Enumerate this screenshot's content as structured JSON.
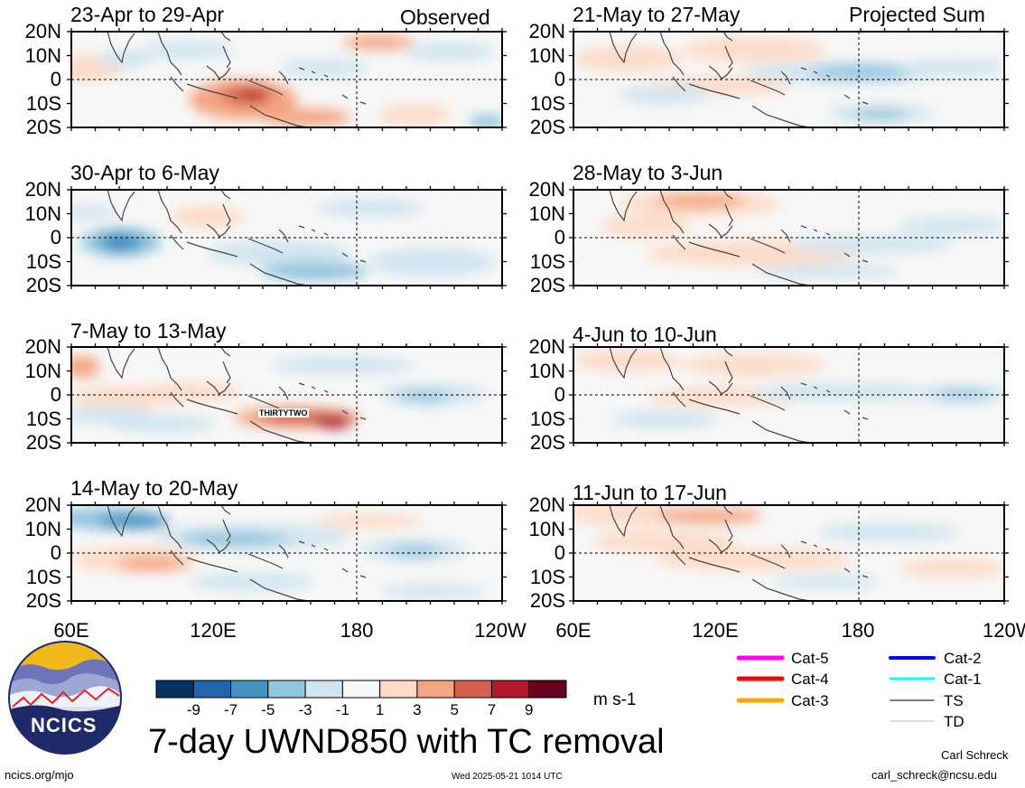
{
  "panels": [
    {
      "label": "23-Apr to 29-Apr",
      "tag": "Observed"
    },
    {
      "label": "21-May to 27-May",
      "tag": "Projected Sum"
    },
    {
      "label": "30-Apr to 6-May",
      "tag": ""
    },
    {
      "label": "28-May to 3-Jun",
      "tag": ""
    },
    {
      "label": "7-May to 13-May",
      "tag": "",
      "annotation": "THIRTYTWO"
    },
    {
      "label": "4-Jun to 10-Jun",
      "tag": ""
    },
    {
      "label": "14-May to 20-May",
      "tag": ""
    },
    {
      "label": "11-Jun to 17-Jun",
      "tag": ""
    }
  ],
  "lat_labels": [
    "20N",
    "10N",
    "0",
    "10S",
    "20S"
  ],
  "lon_labels": [
    "60E",
    "120E",
    "180",
    "120W"
  ],
  "colorbar": {
    "labels": [
      "-9",
      "-7",
      "-5",
      "-3",
      "-1",
      "1",
      "3",
      "5",
      "7",
      "9"
    ],
    "colors": [
      "#053061",
      "#2166ac",
      "#4393c3",
      "#92c5de",
      "#d1e5f0",
      "#f7f7f7",
      "#fddbc7",
      "#f4a582",
      "#d6604d",
      "#b2182b",
      "#67001f"
    ],
    "units": "m s-1"
  },
  "title": "7-day UWND850 with TC removal",
  "tc_legend": [
    {
      "label": "Cat-5",
      "color": "#ff00ff"
    },
    {
      "label": "Cat-4",
      "color": "#ff0000"
    },
    {
      "label": "Cat-3",
      "color": "#ffa500"
    },
    {
      "label": "Cat-2",
      "color": "#0000ff"
    },
    {
      "label": "Cat-1",
      "color": "#00ffff"
    },
    {
      "label": "TS",
      "color": "#555555"
    },
    {
      "label": "TD",
      "color": "#aaaaaa"
    }
  ],
  "logo_text": "NCICS",
  "footer": {
    "url": "ncics.org/mjo",
    "timestamp": "Wed 2025-05-21 1014 UTC",
    "author": "Carl Schreck",
    "email": "carl_schreck@ncsu.edu"
  }
}
